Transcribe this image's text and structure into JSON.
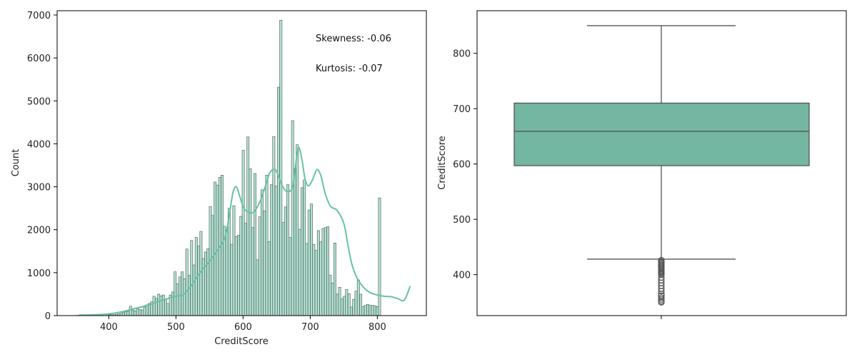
{
  "colors": {
    "accent": "#66c2a5",
    "bar_fill": "#66c2a5",
    "bar_edge": "#4d5a55",
    "box_fill": "#73b6a1",
    "box_line": "#555555"
  },
  "chart_data": [
    {
      "type": "histogram",
      "xlabel": "CreditScore",
      "ylabel": "Count",
      "xlim": [
        323,
        873
      ],
      "ylim": [
        0,
        7100
      ],
      "x_ticks": [
        400,
        500,
        600,
        700,
        800
      ],
      "y_ticks": [
        0,
        1000,
        2000,
        3000,
        4000,
        5000,
        6000,
        7000
      ],
      "grid": false,
      "annotations": [
        "Skewness: -0.06",
        "Kurtosis: -0.07"
      ],
      "bin_start": 350,
      "bin_width": 3.5,
      "counts": [
        5,
        5,
        5,
        5,
        5,
        5,
        5,
        5,
        5,
        5,
        5,
        5,
        5,
        5,
        20,
        20,
        20,
        30,
        40,
        50,
        70,
        90,
        100,
        220,
        130,
        110,
        160,
        140,
        130,
        200,
        250,
        280,
        320,
        450,
        400,
        500,
        460,
        480,
        380,
        280,
        480,
        550,
        1020,
        740,
        900,
        1020,
        860,
        1550,
        940,
        1750,
        1180,
        1820,
        1620,
        1960,
        1330,
        1480,
        1560,
        2540,
        2330,
        3110,
        3040,
        3220,
        3270,
        2080,
        1990,
        2500,
        1660,
        2560,
        1840,
        1870,
        2310,
        3850,
        2150,
        4160,
        3420,
        2050,
        3310,
        1300,
        2300,
        2930,
        2440,
        3270,
        1720,
        3050,
        4170,
        3020,
        5320,
        6880,
        2170,
        2530,
        3050,
        1820,
        4540,
        3420,
        3980,
        2010,
        2980,
        3160,
        1680,
        2460,
        2600,
        1660,
        1520,
        1980,
        1720,
        2030,
        2050,
        2070,
        940,
        760,
        1690,
        500,
        660,
        390,
        450,
        610,
        510,
        200,
        380,
        570,
        830,
        500,
        210,
        240,
        260,
        240,
        240,
        230,
        210,
        2740
      ],
      "kde": [
        [
          355,
          10
        ],
        [
          380,
          20
        ],
        [
          400,
          40
        ],
        [
          420,
          90
        ],
        [
          440,
          170
        ],
        [
          460,
          250
        ],
        [
          480,
          360
        ],
        [
          500,
          450
        ],
        [
          510,
          480
        ],
        [
          520,
          640
        ],
        [
          530,
          870
        ],
        [
          540,
          1080
        ],
        [
          550,
          1260
        ],
        [
          560,
          1480
        ],
        [
          570,
          1720
        ],
        [
          575,
          1950
        ],
        [
          580,
          2400
        ],
        [
          585,
          2870
        ],
        [
          590,
          3000
        ],
        [
          595,
          2780
        ],
        [
          600,
          2540
        ],
        [
          605,
          2440
        ],
        [
          615,
          2400
        ],
        [
          625,
          2650
        ],
        [
          635,
          3100
        ],
        [
          640,
          3330
        ],
        [
          648,
          3400
        ],
        [
          655,
          3150
        ],
        [
          662,
          2930
        ],
        [
          670,
          2900
        ],
        [
          675,
          3100
        ],
        [
          682,
          3900
        ],
        [
          688,
          3600
        ],
        [
          692,
          3200
        ],
        [
          697,
          3020
        ],
        [
          703,
          3150
        ],
        [
          710,
          3400
        ],
        [
          716,
          3250
        ],
        [
          722,
          2860
        ],
        [
          730,
          2550
        ],
        [
          740,
          2450
        ],
        [
          750,
          2150
        ],
        [
          756,
          1660
        ],
        [
          762,
          1200
        ],
        [
          770,
          870
        ],
        [
          780,
          650
        ],
        [
          790,
          530
        ],
        [
          800,
          480
        ],
        [
          810,
          450
        ],
        [
          820,
          440
        ],
        [
          830,
          400
        ],
        [
          840,
          360
        ],
        [
          849,
          690
        ]
      ]
    },
    {
      "type": "box",
      "ylabel": "CreditScore",
      "ylim": [
        326,
        877
      ],
      "y_ticks": [
        400,
        500,
        600,
        700,
        800
      ],
      "grid": false,
      "whisker_low": 428,
      "q1": 597,
      "median": 659,
      "q3": 710,
      "whisker_high": 850,
      "outliers": [
        426,
        424,
        422,
        420,
        418,
        416,
        414,
        412,
        410,
        408,
        406,
        404,
        402,
        400,
        395,
        390,
        385,
        380,
        375,
        370,
        365,
        362,
        358,
        355,
        352,
        350
      ]
    }
  ]
}
